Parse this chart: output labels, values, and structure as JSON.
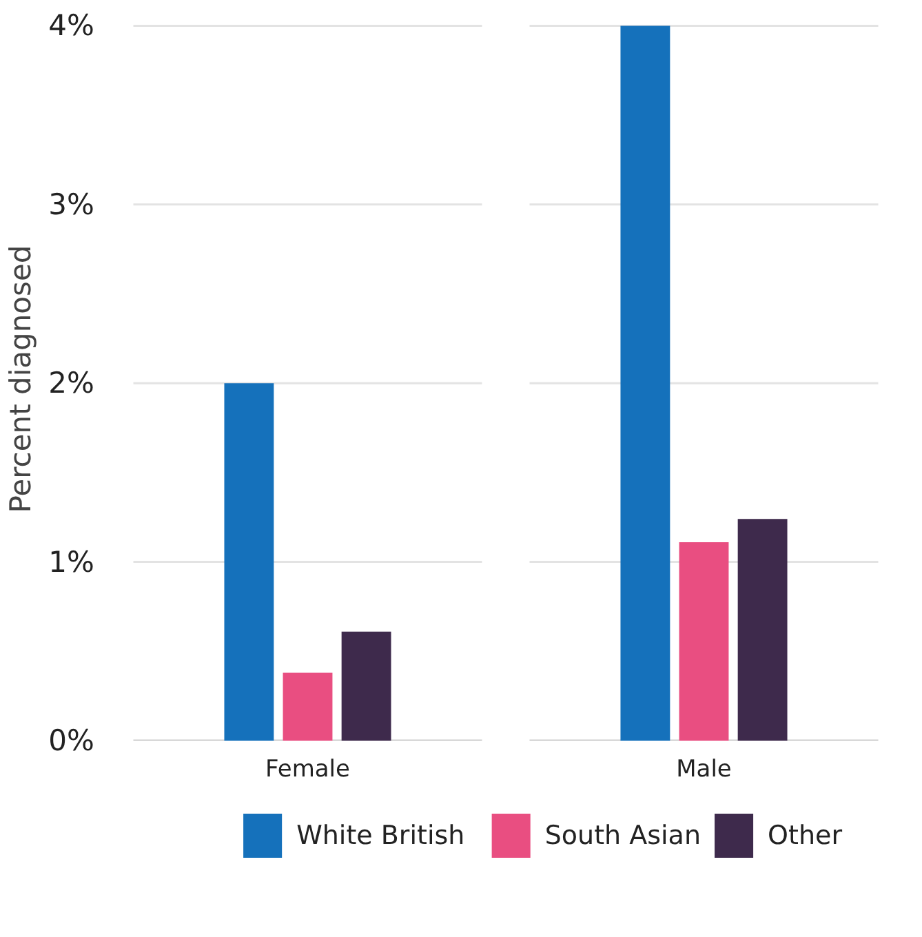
{
  "chart_data": {
    "type": "bar",
    "ylabel": "Percent diagnosed",
    "categories": [
      "Female",
      "Male"
    ],
    "series": [
      {
        "name": "White British",
        "color": "#1571bb",
        "values": [
          2.0,
          4.0
        ]
      },
      {
        "name": "South Asian",
        "color": "#e94e81",
        "values": [
          0.38,
          1.11
        ]
      },
      {
        "name": "Other",
        "color": "#3e2a4c",
        "values": [
          0.61,
          1.24
        ]
      }
    ],
    "ylim": [
      0,
      4
    ],
    "yticks": [
      {
        "value": 0,
        "label": "0%"
      },
      {
        "value": 1,
        "label": "1%"
      },
      {
        "value": 2,
        "label": "2%"
      },
      {
        "value": 3,
        "label": "3%"
      },
      {
        "value": 4,
        "label": "4%"
      }
    ],
    "grid": "y",
    "legend": "bottom"
  }
}
